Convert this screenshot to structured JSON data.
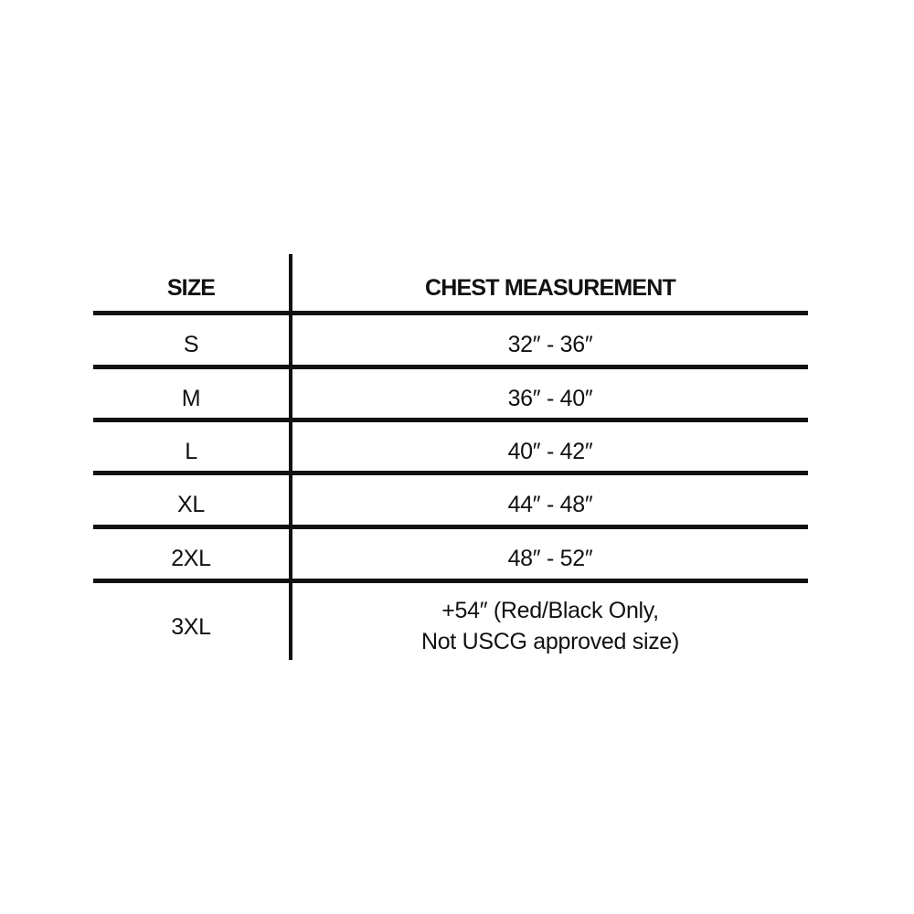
{
  "table": {
    "headers": [
      "SIZE",
      "CHEST MEASUREMENT"
    ],
    "rows": [
      {
        "size": "S",
        "chest": "32″ - 36″"
      },
      {
        "size": "M",
        "chest": "36″ - 40″"
      },
      {
        "size": "L",
        "chest": "40″ - 42″"
      },
      {
        "size": "XL",
        "chest": "44″ - 48″"
      },
      {
        "size": "2XL",
        "chest": "48″ - 52″"
      },
      {
        "size": "3XL",
        "chest": "+54″ (Red/Black Only,",
        "chest_line2": "Not USCG approved size)"
      }
    ]
  }
}
